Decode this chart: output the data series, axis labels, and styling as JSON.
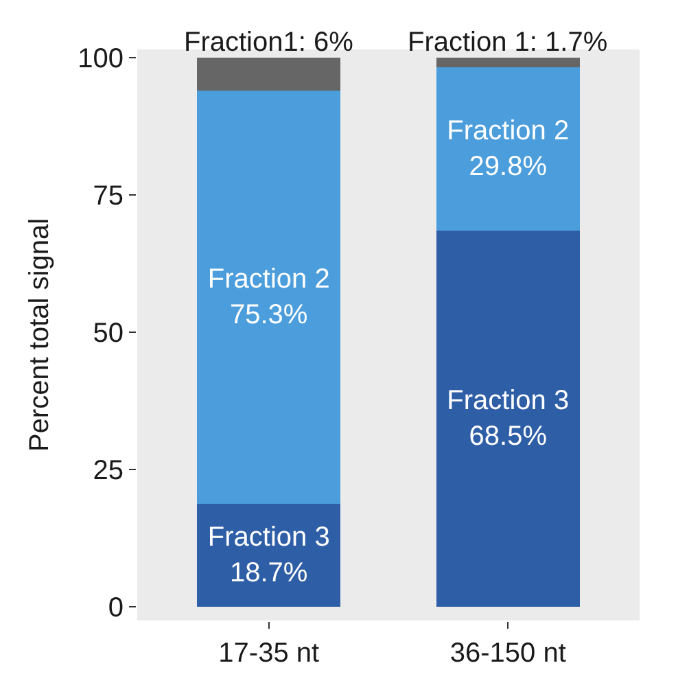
{
  "chart_data": {
    "type": "bar",
    "stacked": true,
    "ylabel": "Percent total signal",
    "categories": [
      "17-35 nt",
      "36-150 nt"
    ],
    "ylim": [
      -2.5,
      101.5
    ],
    "yticks": [
      0,
      25,
      50,
      75,
      100
    ],
    "grid": false,
    "series": [
      {
        "color": "#2e5ea6",
        "values": [
          18.7,
          68.5
        ],
        "value_labels": [
          "Fraction 3\n18.7%",
          "Fraction 3\n68.5%"
        ]
      },
      {
        "color": "#4b9ddb",
        "values": [
          75.3,
          29.8
        ],
        "value_labels": [
          "Fraction 2\n75.3%",
          "Fraction 2\n29.8%"
        ]
      },
      {
        "color": "#666666",
        "values": [
          6,
          1.7
        ],
        "value_labels": [
          "Fraction1: 6%",
          "Fraction 1: 1.7%"
        ]
      }
    ]
  }
}
